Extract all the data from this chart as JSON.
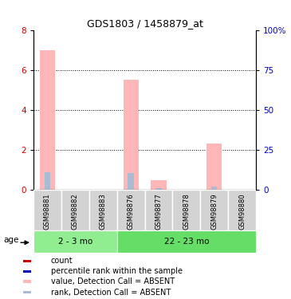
{
  "title": "GDS1803 / 1458879_at",
  "samples": [
    "GSM98881",
    "GSM98882",
    "GSM98883",
    "GSM98876",
    "GSM98877",
    "GSM98878",
    "GSM98879",
    "GSM98880"
  ],
  "group1_label": "2 - 3 mo",
  "group2_label": "22 - 23 mo",
  "group1_color": "#90EE90",
  "group2_color": "#66DD66",
  "pink_values": [
    7.0,
    0,
    0,
    5.5,
    0.5,
    0,
    2.3,
    0
  ],
  "blue_rank_values": [
    11.25,
    0,
    0,
    10.625,
    1.25,
    0,
    1.875,
    0
  ],
  "ylim_left": [
    0,
    8
  ],
  "ylim_right": [
    0,
    100
  ],
  "yticks_left": [
    0,
    2,
    4,
    6,
    8
  ],
  "yticks_right": [
    0,
    25,
    50,
    75,
    100
  ],
  "ytick_labels_right": [
    "0",
    "25",
    "50",
    "75",
    "100%"
  ],
  "pink_color": "#FFB6B6",
  "light_blue_color": "#AABBD4",
  "red_color": "#CC0000",
  "blue_color": "#0000BB",
  "group_bg_color": "#D3D3D3",
  "age_label": "age",
  "legend_items": [
    {
      "label": "count",
      "color": "#CC0000"
    },
    {
      "label": "percentile rank within the sample",
      "color": "#0000BB"
    },
    {
      "label": "value, Detection Call = ABSENT",
      "color": "#FFB6B6"
    },
    {
      "label": "rank, Detection Call = ABSENT",
      "color": "#AABBD4"
    }
  ]
}
